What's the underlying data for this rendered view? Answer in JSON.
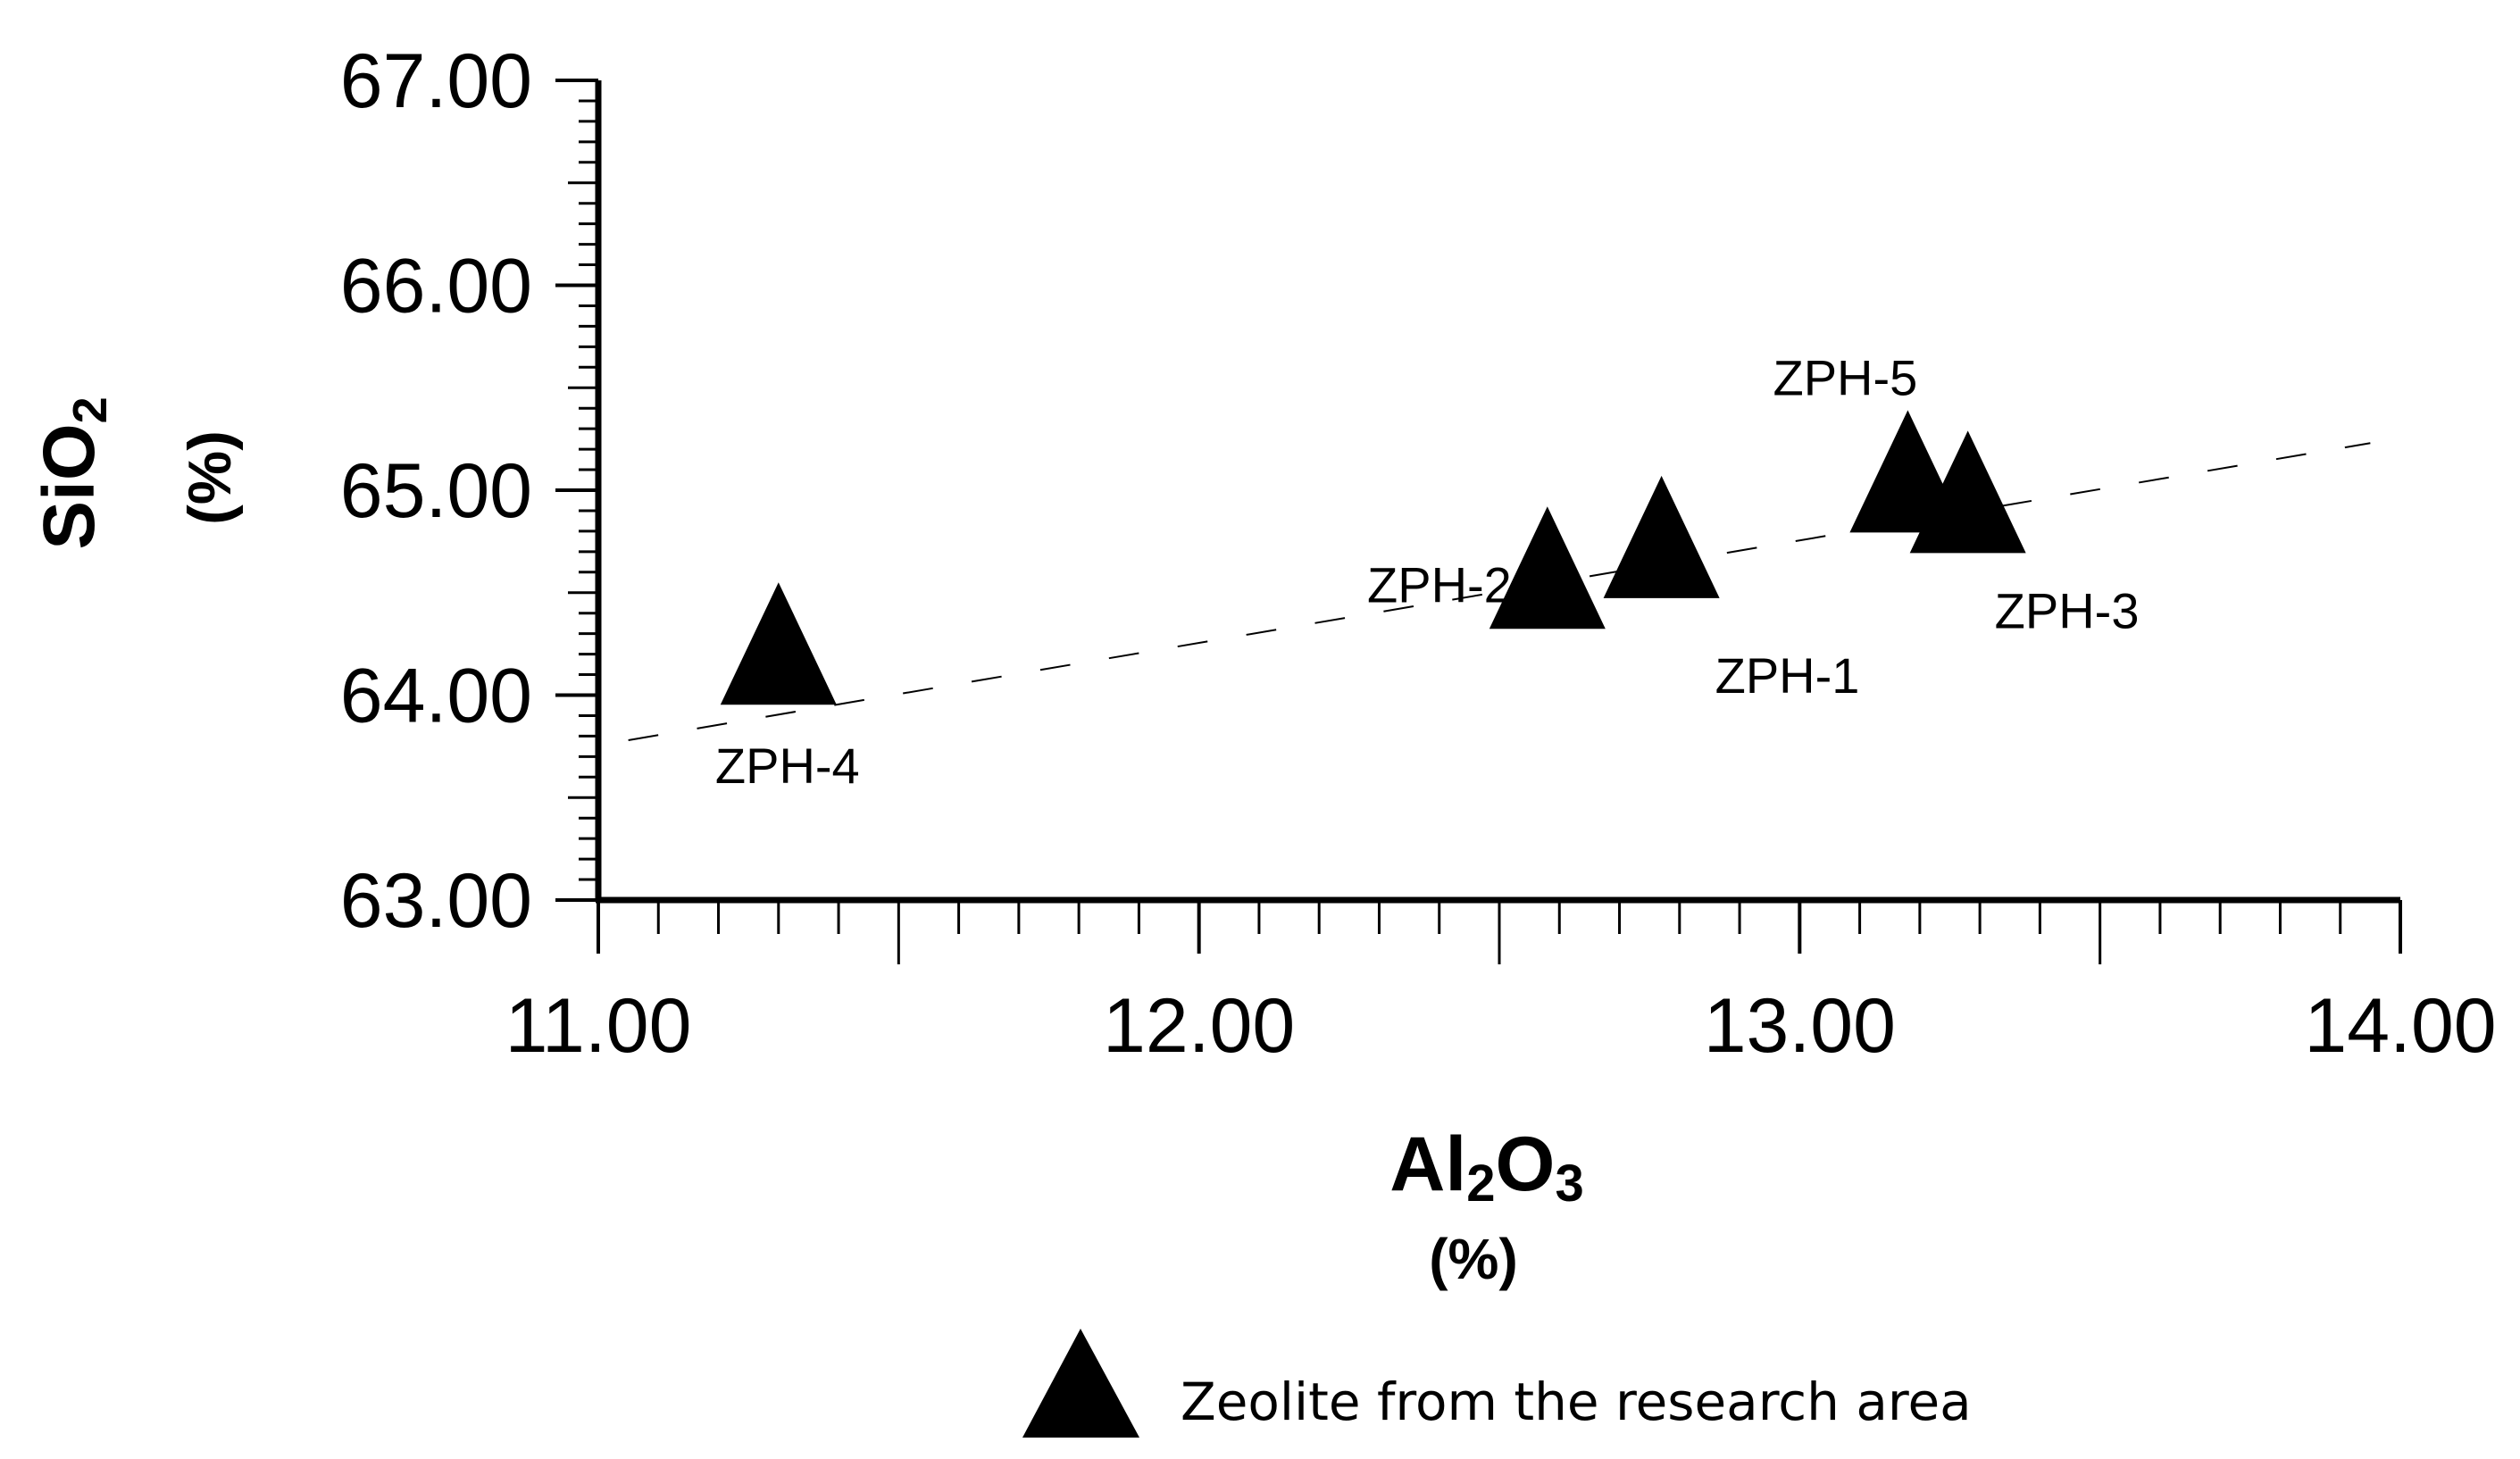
{
  "chart_data": {
    "type": "scatter",
    "title": "",
    "xlabel": {
      "main": "Al",
      "sub1": "2",
      "mid": "O",
      "sub2": "3",
      "unit": "(%)"
    },
    "ylabel": {
      "main": "SiO",
      "sub": "2",
      "unit": "(%)"
    },
    "xlim": [
      11.0,
      14.0
    ],
    "ylim": [
      63.0,
      67.0
    ],
    "x_major_ticks": [
      11.0,
      12.0,
      13.0,
      14.0
    ],
    "y_major_ticks": [
      63.0,
      64.0,
      65.0,
      66.0,
      67.0
    ],
    "x_tick_labels": [
      "11.00",
      "12.00",
      "13.00",
      "14.00"
    ],
    "y_tick_labels": [
      "63.00",
      "64.00",
      "65.00",
      "66.00",
      "67.00"
    ],
    "x_minor_step": 0.1,
    "y_minor_step": 0.1,
    "series": [
      {
        "name": "Zeolite from the research area",
        "marker": "triangle",
        "color": "#000000",
        "points": [
          {
            "label": "ZPH-1",
            "x": 12.77,
            "y": 64.7
          },
          {
            "label": "ZPH-2",
            "x": 12.58,
            "y": 64.55
          },
          {
            "label": "ZPH-3",
            "x": 13.28,
            "y": 64.92
          },
          {
            "label": "ZPH-4",
            "x": 11.3,
            "y": 64.18
          },
          {
            "label": "ZPH-5",
            "x": 13.18,
            "y": 65.02
          }
        ]
      }
    ],
    "trendline": {
      "style": "dashed",
      "x": [
        11.05,
        13.95
      ],
      "y": [
        63.78,
        65.23
      ]
    },
    "legend": {
      "position": "bottom-center",
      "entries": [
        {
          "label": "Zeolite from the research area",
          "marker": "triangle"
        }
      ]
    }
  }
}
